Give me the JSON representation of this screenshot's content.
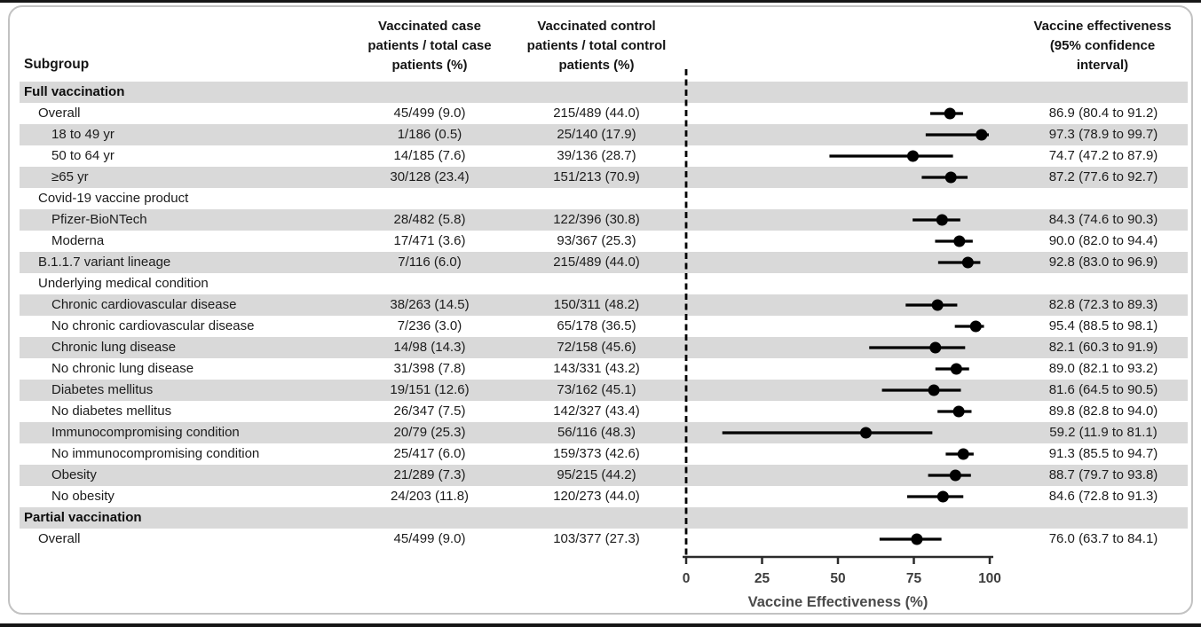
{
  "figure": {
    "subgroup_header": "Subgroup",
    "col_case_header": "Vaccinated case\npatients / total case\npatients (%)",
    "col_control_header": "Vaccinated control\npatients / total control\npatients (%)",
    "col_ve_header": "Vaccine effectiveness\n(95% confidence\ninterval)"
  },
  "rows": [
    {
      "label": "Full vaccination",
      "indent": 0,
      "bold": true,
      "shaded": true,
      "case": "",
      "control": "",
      "ve_text": "",
      "ve": null,
      "lo": null,
      "hi": null
    },
    {
      "label": "Overall",
      "indent": 1,
      "bold": false,
      "shaded": false,
      "case": "45/499 (9.0)",
      "control": "215/489 (44.0)",
      "ve_text": "86.9 (80.4 to 91.2)",
      "ve": 86.9,
      "lo": 80.4,
      "hi": 91.2
    },
    {
      "label": "18 to 49 yr",
      "indent": 2,
      "bold": false,
      "shaded": true,
      "case": "1/186 (0.5)",
      "control": "25/140 (17.9)",
      "ve_text": "97.3 (78.9 to 99.7)",
      "ve": 97.3,
      "lo": 78.9,
      "hi": 99.7
    },
    {
      "label": "50 to 64 yr",
      "indent": 2,
      "bold": false,
      "shaded": false,
      "case": "14/185 (7.6)",
      "control": "39/136 (28.7)",
      "ve_text": "74.7 (47.2 to 87.9)",
      "ve": 74.7,
      "lo": 47.2,
      "hi": 87.9
    },
    {
      "label": "≥65 yr",
      "indent": 2,
      "bold": false,
      "shaded": true,
      "case": "30/128 (23.4)",
      "control": "151/213 (70.9)",
      "ve_text": "87.2 (77.6 to 92.7)",
      "ve": 87.2,
      "lo": 77.6,
      "hi": 92.7
    },
    {
      "label": "Covid-19 vaccine product",
      "indent": 1,
      "bold": false,
      "shaded": false,
      "case": "",
      "control": "",
      "ve_text": "",
      "ve": null,
      "lo": null,
      "hi": null
    },
    {
      "label": "Pfizer-BioNTech",
      "indent": 2,
      "bold": false,
      "shaded": true,
      "case": "28/482 (5.8)",
      "control": "122/396 (30.8)",
      "ve_text": "84.3 (74.6 to 90.3)",
      "ve": 84.3,
      "lo": 74.6,
      "hi": 90.3
    },
    {
      "label": "Moderna",
      "indent": 2,
      "bold": false,
      "shaded": false,
      "case": "17/471 (3.6)",
      "control": "93/367 (25.3)",
      "ve_text": "90.0 (82.0 to 94.4)",
      "ve": 90.0,
      "lo": 82.0,
      "hi": 94.4
    },
    {
      "label": "B.1.1.7 variant lineage",
      "indent": 1,
      "bold": false,
      "shaded": true,
      "case": "7/116 (6.0)",
      "control": "215/489 (44.0)",
      "ve_text": "92.8 (83.0 to 96.9)",
      "ve": 92.8,
      "lo": 83.0,
      "hi": 96.9
    },
    {
      "label": "Underlying medical condition",
      "indent": 1,
      "bold": false,
      "shaded": false,
      "case": "",
      "control": "",
      "ve_text": "",
      "ve": null,
      "lo": null,
      "hi": null
    },
    {
      "label": "Chronic cardiovascular disease",
      "indent": 2,
      "bold": false,
      "shaded": true,
      "case": "38/263 (14.5)",
      "control": "150/311 (48.2)",
      "ve_text": "82.8 (72.3 to 89.3)",
      "ve": 82.8,
      "lo": 72.3,
      "hi": 89.3
    },
    {
      "label": "No chronic cardiovascular disease",
      "indent": 2,
      "bold": false,
      "shaded": false,
      "case": "7/236 (3.0)",
      "control": "65/178 (36.5)",
      "ve_text": "95.4 (88.5 to 98.1)",
      "ve": 95.4,
      "lo": 88.5,
      "hi": 98.1
    },
    {
      "label": "Chronic lung disease",
      "indent": 2,
      "bold": false,
      "shaded": true,
      "case": "14/98 (14.3)",
      "control": "72/158 (45.6)",
      "ve_text": "82.1 (60.3 to 91.9)",
      "ve": 82.1,
      "lo": 60.3,
      "hi": 91.9
    },
    {
      "label": "No chronic lung disease",
      "indent": 2,
      "bold": false,
      "shaded": false,
      "case": "31/398 (7.8)",
      "control": "143/331 (43.2)",
      "ve_text": "89.0 (82.1 to 93.2)",
      "ve": 89.0,
      "lo": 82.1,
      "hi": 93.2
    },
    {
      "label": "Diabetes mellitus",
      "indent": 2,
      "bold": false,
      "shaded": true,
      "case": "19/151 (12.6)",
      "control": "73/162 (45.1)",
      "ve_text": "81.6 (64.5 to 90.5)",
      "ve": 81.6,
      "lo": 64.5,
      "hi": 90.5
    },
    {
      "label": "No diabetes mellitus",
      "indent": 2,
      "bold": false,
      "shaded": false,
      "case": "26/347 (7.5)",
      "control": "142/327 (43.4)",
      "ve_text": "89.8 (82.8 to 94.0)",
      "ve": 89.8,
      "lo": 82.8,
      "hi": 94.0
    },
    {
      "label": "Immunocompromising condition",
      "indent": 2,
      "bold": false,
      "shaded": true,
      "case": "20/79 (25.3)",
      "control": "56/116 (48.3)",
      "ve_text": "59.2 (11.9 to 81.1)",
      "ve": 59.2,
      "lo": 11.9,
      "hi": 81.1
    },
    {
      "label": "No immunocompromising condition",
      "indent": 2,
      "bold": false,
      "shaded": false,
      "case": "25/417 (6.0)",
      "control": "159/373 (42.6)",
      "ve_text": "91.3 (85.5 to 94.7)",
      "ve": 91.3,
      "lo": 85.5,
      "hi": 94.7
    },
    {
      "label": "Obesity",
      "indent": 2,
      "bold": false,
      "shaded": true,
      "case": "21/289 (7.3)",
      "control": "95/215 (44.2)",
      "ve_text": "88.7 (79.7 to 93.8)",
      "ve": 88.7,
      "lo": 79.7,
      "hi": 93.8
    },
    {
      "label": "No obesity",
      "indent": 2,
      "bold": false,
      "shaded": false,
      "case": "24/203 (11.8)",
      "control": "120/273 (44.0)",
      "ve_text": "84.6 (72.8 to 91.3)",
      "ve": 84.6,
      "lo": 72.8,
      "hi": 91.3
    },
    {
      "label": "Partial vaccination",
      "indent": 0,
      "bold": true,
      "shaded": true,
      "case": "",
      "control": "",
      "ve_text": "",
      "ve": null,
      "lo": null,
      "hi": null
    },
    {
      "label": "Overall",
      "indent": 1,
      "bold": false,
      "shaded": false,
      "case": "45/499 (9.0)",
      "control": "103/377 (27.3)",
      "ve_text": "76.0 (63.7 to 84.1)",
      "ve": 76.0,
      "lo": 63.7,
      "hi": 84.1
    }
  ],
  "axis": {
    "label": "Vaccine Effectiveness (%)",
    "ticks": [
      0,
      25,
      50,
      75,
      100
    ]
  },
  "chart_data": {
    "type": "scatter",
    "subtype": "forest-plot",
    "xlabel": "Vaccine Effectiveness (%)",
    "xlim": [
      0,
      100
    ],
    "xticks": [
      0,
      25,
      50,
      75,
      100
    ],
    "reference_line_x": 0,
    "grid": false,
    "legend_position": "none",
    "points": [
      {
        "subgroup": "Full vaccination - Overall",
        "ve": 86.9,
        "ci_low": 80.4,
        "ci_high": 91.2
      },
      {
        "subgroup": "18 to 49 yr",
        "ve": 97.3,
        "ci_low": 78.9,
        "ci_high": 99.7
      },
      {
        "subgroup": "50 to 64 yr",
        "ve": 74.7,
        "ci_low": 47.2,
        "ci_high": 87.9
      },
      {
        "subgroup": "≥65 yr",
        "ve": 87.2,
        "ci_low": 77.6,
        "ci_high": 92.7
      },
      {
        "subgroup": "Pfizer-BioNTech",
        "ve": 84.3,
        "ci_low": 74.6,
        "ci_high": 90.3
      },
      {
        "subgroup": "Moderna",
        "ve": 90.0,
        "ci_low": 82.0,
        "ci_high": 94.4
      },
      {
        "subgroup": "B.1.1.7 variant lineage",
        "ve": 92.8,
        "ci_low": 83.0,
        "ci_high": 96.9
      },
      {
        "subgroup": "Chronic cardiovascular disease",
        "ve": 82.8,
        "ci_low": 72.3,
        "ci_high": 89.3
      },
      {
        "subgroup": "No chronic cardiovascular disease",
        "ve": 95.4,
        "ci_low": 88.5,
        "ci_high": 98.1
      },
      {
        "subgroup": "Chronic lung disease",
        "ve": 82.1,
        "ci_low": 60.3,
        "ci_high": 91.9
      },
      {
        "subgroup": "No chronic lung disease",
        "ve": 89.0,
        "ci_low": 82.1,
        "ci_high": 93.2
      },
      {
        "subgroup": "Diabetes mellitus",
        "ve": 81.6,
        "ci_low": 64.5,
        "ci_high": 90.5
      },
      {
        "subgroup": "No diabetes mellitus",
        "ve": 89.8,
        "ci_low": 82.8,
        "ci_high": 94.0
      },
      {
        "subgroup": "Immunocompromising condition",
        "ve": 59.2,
        "ci_low": 11.9,
        "ci_high": 81.1
      },
      {
        "subgroup": "No immunocompromising condition",
        "ve": 91.3,
        "ci_low": 85.5,
        "ci_high": 94.7
      },
      {
        "subgroup": "Obesity",
        "ve": 88.7,
        "ci_low": 79.7,
        "ci_high": 93.8
      },
      {
        "subgroup": "No obesity",
        "ve": 84.6,
        "ci_low": 72.8,
        "ci_high": 91.3
      },
      {
        "subgroup": "Partial vaccination - Overall",
        "ve": 76.0,
        "ci_low": 63.7,
        "ci_high": 84.1
      }
    ]
  },
  "colors": {
    "shaded_row": "#d9d9d9",
    "marker": "#000000",
    "ci_line": "#000000",
    "reference_line": "#000000",
    "axis": "#2b2b2b",
    "text": "#1c1c1c",
    "frame": "#c2c2c2"
  }
}
